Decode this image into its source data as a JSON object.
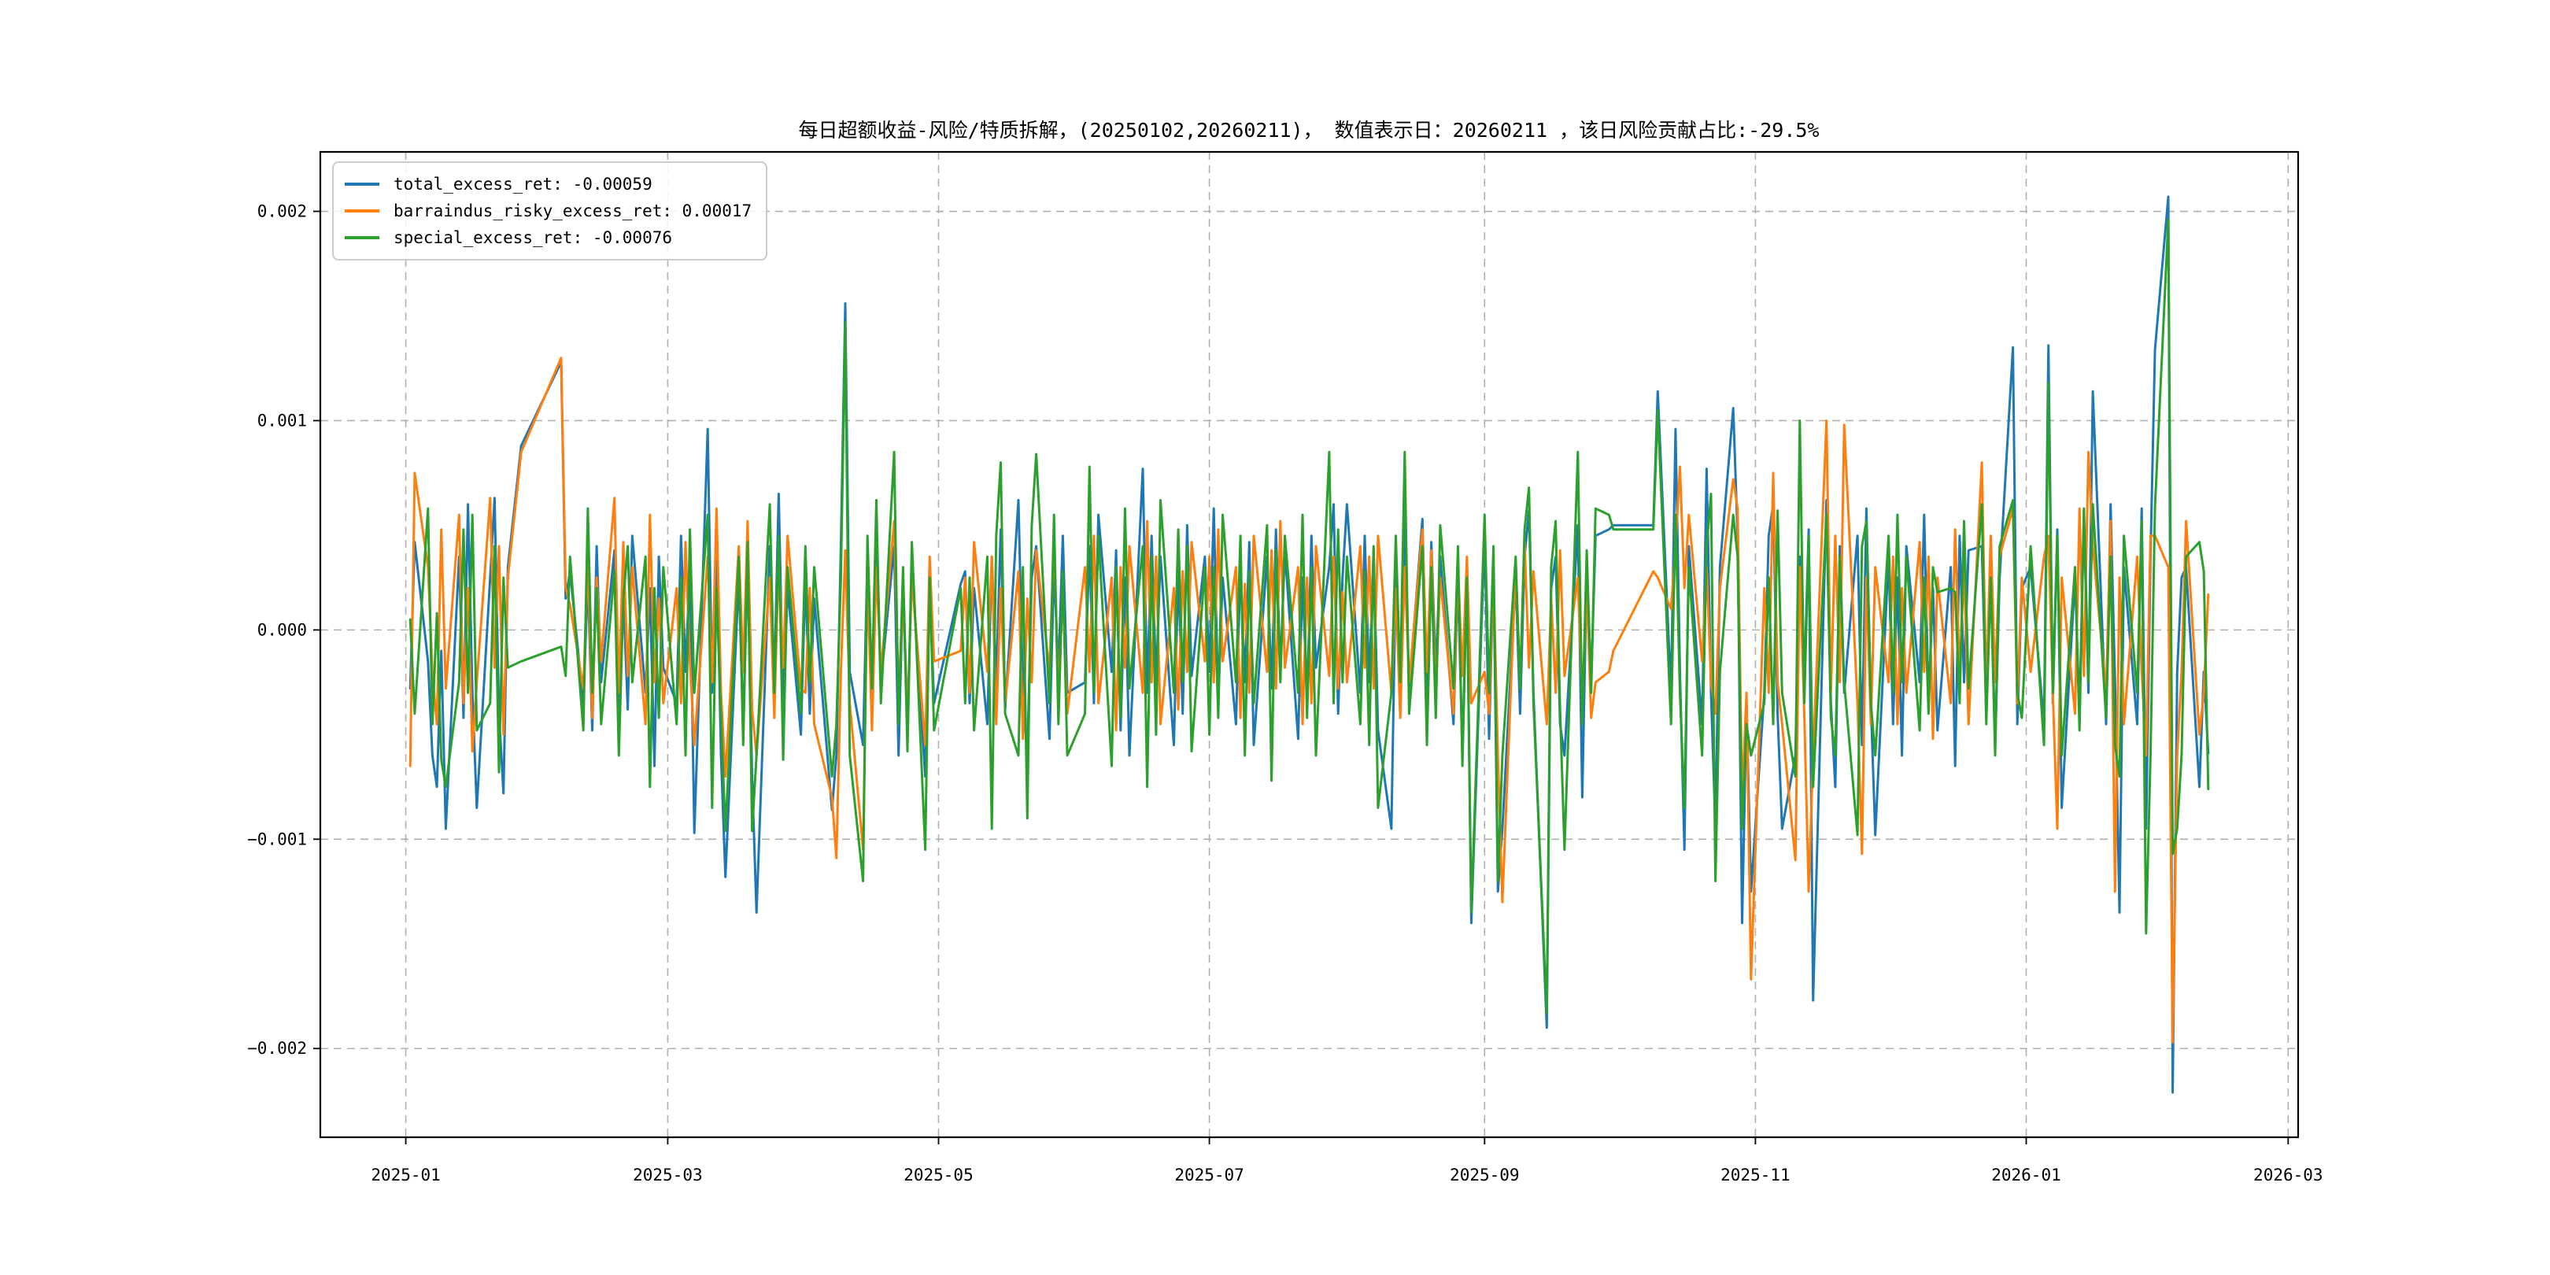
{
  "chart_data": {
    "type": "line",
    "title": "每日超额收益-风险/特质拆解，(20250102,20260211)，  数值表示日：20260211 ，该日风险贡献占比:-29.5%",
    "xlabel": "",
    "ylabel": "",
    "grid": true,
    "legend_position": "upper left",
    "x_start_date": "2025-01-02",
    "x_end_date": "2026-02-11",
    "x_ticks": [
      {
        "day": -1,
        "label": "2025-01"
      },
      {
        "day": 58,
        "label": "2025-03"
      },
      {
        "day": 119,
        "label": "2025-05"
      },
      {
        "day": 180,
        "label": "2025-07"
      },
      {
        "day": 242,
        "label": "2025-09"
      },
      {
        "day": 303,
        "label": "2025-11"
      },
      {
        "day": 364,
        "label": "2026-01"
      },
      {
        "day": 423,
        "label": "2026-03"
      }
    ],
    "y_ticks": [
      {
        "value": 0.002,
        "label": "0.002"
      },
      {
        "value": 0.001,
        "label": "0.001"
      },
      {
        "value": 0.0,
        "label": "0.000"
      },
      {
        "value": -0.001,
        "label": "−0.001"
      },
      {
        "value": -0.002,
        "label": "−0.002"
      }
    ],
    "ylim_note": "auto (matplotlib 5% margins)",
    "value_scale": 1e-05,
    "day_offsets": [
      0,
      1,
      4,
      5,
      6,
      7,
      8,
      11,
      12,
      13,
      14,
      15,
      18,
      19,
      20,
      21,
      22,
      25,
      34,
      35,
      36,
      39,
      40,
      41,
      42,
      43,
      46,
      47,
      48,
      49,
      50,
      53,
      54,
      55,
      56,
      57,
      60,
      61,
      62,
      63,
      64,
      67,
      68,
      69,
      70,
      71,
      74,
      75,
      76,
      77,
      78,
      81,
      82,
      83,
      84,
      85,
      88,
      89,
      90,
      91,
      95,
      96,
      97,
      98,
      99,
      102,
      103,
      104,
      105,
      106,
      109,
      110,
      111,
      112,
      113,
      116,
      117,
      118,
      124,
      125,
      126,
      127,
      130,
      131,
      132,
      133,
      134,
      137,
      138,
      139,
      140,
      141,
      144,
      145,
      146,
      147,
      148,
      152,
      153,
      154,
      155,
      158,
      159,
      160,
      161,
      162,
      165,
      166,
      167,
      168,
      169,
      172,
      173,
      174,
      175,
      176,
      179,
      180,
      181,
      182,
      183,
      186,
      187,
      188,
      189,
      190,
      193,
      194,
      195,
      196,
      197,
      200,
      201,
      202,
      203,
      204,
      207,
      208,
      209,
      210,
      211,
      214,
      215,
      216,
      217,
      218,
      221,
      222,
      223,
      224,
      225,
      228,
      229,
      230,
      231,
      232,
      235,
      236,
      237,
      238,
      239,
      242,
      243,
      244,
      245,
      246,
      249,
      250,
      251,
      252,
      253,
      256,
      257,
      258,
      259,
      260,
      263,
      264,
      265,
      266,
      267,
      270,
      271,
      280,
      281,
      284,
      285,
      286,
      287,
      288,
      291,
      292,
      293,
      294,
      295,
      298,
      299,
      300,
      301,
      302,
      305,
      306,
      307,
      308,
      309,
      312,
      313,
      314,
      315,
      316,
      319,
      320,
      321,
      322,
      323,
      326,
      327,
      328,
      329,
      330,
      333,
      334,
      335,
      336,
      337,
      340,
      341,
      342,
      343,
      344,
      347,
      348,
      349,
      350,
      351,
      354,
      355,
      356,
      357,
      358,
      361,
      362,
      363,
      365,
      368,
      369,
      370,
      371,
      372,
      375,
      376,
      377,
      378,
      379,
      382,
      383,
      384,
      385,
      386,
      389,
      390,
      391,
      392,
      393,
      396,
      397,
      398,
      399,
      400,
      403,
      404,
      405
    ],
    "series": [
      {
        "name": "total_excess_ret",
        "legend": "total_excess_ret: -0.00059",
        "last_value": -0.00059,
        "color": "#1f77b4",
        "values": [
          -28,
          42,
          -15,
          -60,
          -75,
          -10,
          -95,
          35,
          -42,
          60,
          -30,
          -85,
          25,
          63,
          -40,
          -78,
          30,
          88,
          128,
          15,
          28,
          -35,
          25,
          -48,
          40,
          -25,
          38,
          -52,
          18,
          -38,
          45,
          -30,
          20,
          -65,
          35,
          -18,
          -35,
          45,
          -20,
          30,
          -97,
          96,
          -30,
          42,
          -60,
          -118,
          25,
          -45,
          30,
          -70,
          -135,
          40,
          -25,
          65,
          -35,
          20,
          -50,
          25,
          -40,
          15,
          -86,
          -60,
          40,
          156,
          -20,
          -55,
          35,
          -30,
          48,
          -25,
          40,
          -60,
          25,
          -45,
          30,
          -70,
          20,
          -35,
          22,
          28,
          -35,
          20,
          -45,
          35,
          -25,
          48,
          -38,
          62,
          -30,
          -60,
          25,
          40,
          -52,
          30,
          -20,
          45,
          -30,
          -25,
          40,
          -35,
          55,
          -20,
          38,
          -48,
          25,
          -60,
          77,
          -30,
          45,
          -25,
          35,
          -55,
          28,
          -40,
          50,
          -22,
          35,
          -20,
          58,
          -35,
          25,
          -45,
          30,
          -25,
          42,
          -55,
          35,
          -28,
          48,
          -20,
          38,
          -52,
          25,
          -35,
          45,
          -18,
          30,
          60,
          -40,
          25,
          60,
          -30,
          45,
          -25,
          38,
          -48,
          -95,
          30,
          -40,
          55,
          -28,
          53,
          -35,
          42,
          -20,
          35,
          -45,
          25,
          -60,
          30,
          -140,
          45,
          -52,
          30,
          -125,
          -95,
          25,
          -40,
          35,
          57,
          -30,
          -190,
          20,
          35,
          -45,
          -60,
          50,
          -80,
          30,
          -25,
          45,
          48,
          50,
          50,
          114,
          -30,
          96,
          -20,
          -105,
          40,
          -45,
          77,
          -30,
          -95,
          30,
          106,
          45,
          -140,
          -35,
          -125,
          -30,
          45,
          60,
          -40,
          -95,
          -60,
          35,
          -25,
          48,
          -177,
          62,
          -35,
          -75,
          40,
          -30,
          45,
          -55,
          58,
          -35,
          -98,
          35,
          -45,
          25,
          -60,
          40,
          -25,
          55,
          -35,
          20,
          -48,
          30,
          -65,
          45,
          -25,
          38,
          40,
          -40,
          30,
          -55,
          25,
          135,
          -45,
          20,
          30,
          -45,
          136,
          -35,
          48,
          -85,
          25,
          -40,
          55,
          -30,
          114,
          -45,
          60,
          -25,
          -135,
          30,
          -45,
          58,
          -95,
          35,
          134,
          207,
          -221,
          -20,
          25,
          30,
          -75,
          -20,
          -59
        ]
      },
      {
        "name": "barraindus_risky_excess_ret",
        "legend": "barraindus_risky_excess_ret: 0.00017",
        "last_value": 0.00017,
        "color": "#ff7f0e",
        "values": [
          -65,
          75,
          30,
          -20,
          -45,
          48,
          -28,
          55,
          -35,
          20,
          -58,
          -25,
          63,
          -18,
          40,
          -50,
          25,
          85,
          130,
          20,
          12,
          -28,
          35,
          -42,
          25,
          -15,
          63,
          -30,
          42,
          -22,
          30,
          -45,
          55,
          -25,
          15,
          -35,
          20,
          -35,
          42,
          -15,
          -55,
          35,
          -25,
          58,
          -30,
          -70,
          40,
          -20,
          52,
          -38,
          -60,
          25,
          -42,
          35,
          -18,
          45,
          -28,
          -30,
          20,
          -45,
          -80,
          -109,
          -20,
          38,
          -35,
          -105,
          25,
          -48,
          30,
          -20,
          52,
          -30,
          15,
          -42,
          25,
          -55,
          35,
          -15,
          -10,
          25,
          -30,
          42,
          -20,
          35,
          -45,
          20,
          -35,
          28,
          -52,
          15,
          -25,
          38,
          -20,
          45,
          -32,
          18,
          -40,
          30,
          -20,
          45,
          -35,
          25,
          -48,
          30,
          -18,
          40,
          -30,
          52,
          -25,
          35,
          -45,
          20,
          -38,
          28,
          -20,
          42,
          -15,
          35,
          -25,
          48,
          -15,
          30,
          -42,
          22,
          -30,
          45,
          -20,
          38,
          -28,
          52,
          -18,
          30,
          -45,
          25,
          -35,
          40,
          -22,
          35,
          -28,
          18,
          -25,
          40,
          -18,
          35,
          -28,
          45,
          -30,
          20,
          -42,
          30,
          -25,
          48,
          -20,
          38,
          -30,
          25,
          -40,
          30,
          -22,
          35,
          -35,
          -20,
          -40,
          25,
          -60,
          -130,
          30,
          -25,
          42,
          -18,
          28,
          -45,
          15,
          -30,
          38,
          -22,
          25,
          -35,
          20,
          -42,
          -25,
          -20,
          -10,
          28,
          25,
          10,
          40,
          78,
          20,
          55,
          -15,
          30,
          -25,
          -40,
          20,
          72,
          58,
          -80,
          -30,
          -167,
          20,
          -30,
          75,
          -25,
          -45,
          -110,
          30,
          -40,
          -125,
          -60,
          100,
          -30,
          45,
          -25,
          98,
          -35,
          -107,
          25,
          -45,
          30,
          -25,
          35,
          -45,
          20,
          -30,
          42,
          -20,
          35,
          -52,
          25,
          -35,
          48,
          -22,
          30,
          -45,
          80,
          -30,
          45,
          -25,
          35,
          58,
          -35,
          25,
          -20,
          35,
          45,
          -30,
          -95,
          25,
          -40,
          58,
          -22,
          85,
          40,
          -30,
          52,
          -125,
          25,
          -45,
          35,
          -20,
          -60,
          45,
          45,
          30,
          -197,
          -60,
          -20,
          52,
          -50,
          -30,
          17
        ]
      },
      {
        "name": "special_excess_ret",
        "legend": "special_excess_ret: -0.00076",
        "last_value": -0.00076,
        "color": "#2ca02c",
        "values": [
          5,
          -40,
          58,
          -45,
          8,
          -62,
          -75,
          -25,
          48,
          -30,
          55,
          -48,
          -35,
          40,
          -68,
          25,
          -18,
          -15,
          -8,
          -22,
          35,
          -48,
          58,
          -30,
          20,
          -45,
          28,
          -60,
          15,
          40,
          -25,
          35,
          -75,
          20,
          -42,
          30,
          -45,
          25,
          -60,
          48,
          -30,
          55,
          -85,
          20,
          -42,
          -96,
          35,
          -55,
          42,
          -96,
          -60,
          60,
          -30,
          45,
          -62,
          30,
          -40,
          40,
          -25,
          30,
          -70,
          -45,
          25,
          147,
          -60,
          -120,
          45,
          -28,
          62,
          -35,
          85,
          -45,
          30,
          -58,
          42,
          -105,
          25,
          -48,
          20,
          -35,
          25,
          -48,
          35,
          -95,
          45,
          80,
          -40,
          -60,
          30,
          -90,
          50,
          84,
          -35,
          55,
          -45,
          28,
          -60,
          -40,
          78,
          -30,
          45,
          -65,
          30,
          -42,
          58,
          -28,
          40,
          -75,
          35,
          -50,
          62,
          -30,
          48,
          -25,
          40,
          -58,
          30,
          -50,
          30,
          -42,
          55,
          -25,
          45,
          -60,
          28,
          -35,
          50,
          -72,
          38,
          -25,
          45,
          -30,
          55,
          -42,
          30,
          -60,
          85,
          -35,
          48,
          -25,
          35,
          -45,
          28,
          -55,
          40,
          -85,
          -30,
          45,
          -25,
          85,
          -40,
          40,
          -55,
          30,
          -42,
          50,
          -28,
          40,
          -65,
          25,
          -135,
          55,
          -30,
          40,
          -120,
          -60,
          35,
          -28,
          48,
          68,
          -35,
          -183,
          30,
          52,
          -38,
          -105,
          85,
          -45,
          38,
          -30,
          58,
          55,
          48,
          48,
          105,
          -45,
          55,
          -30,
          -85,
          30,
          -60,
          40,
          65,
          -120,
          -20,
          55,
          35,
          -95,
          -45,
          -60,
          -35,
          25,
          -45,
          57,
          -30,
          -70,
          100,
          -35,
          45,
          -75,
          55,
          -42,
          -60,
          35,
          -25,
          -98,
          40,
          52,
          -35,
          -60,
          45,
          -30,
          55,
          -25,
          35,
          -48,
          25,
          -40,
          30,
          18,
          20,
          18,
          -35,
          52,
          -28,
          60,
          -45,
          25,
          -60,
          40,
          62,
          -30,
          -42,
          40,
          -55,
          118,
          -30,
          45,
          -60,
          30,
          -48,
          58,
          -25,
          60,
          -42,
          35,
          -55,
          -70,
          45,
          -30,
          52,
          -145,
          -60,
          59,
          196,
          -107,
          -95,
          -60,
          35,
          42,
          28,
          -76
        ]
      }
    ],
    "style": {
      "grid_color": "#b0b0b0",
      "frame_color": "#000000",
      "background": "#ffffff"
    }
  }
}
